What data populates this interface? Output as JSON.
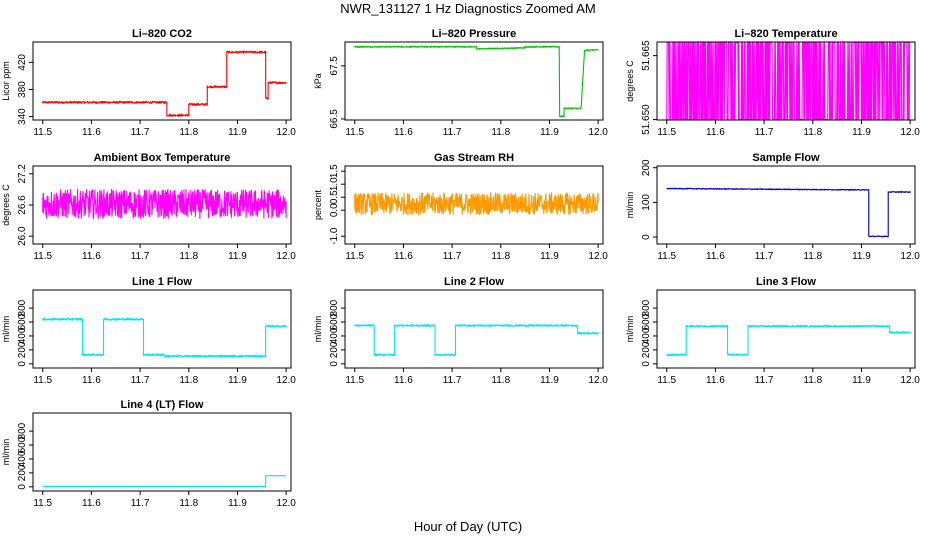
{
  "figure": {
    "title": "NWR_131127  1 Hz Diagnostics Zoomed AM",
    "xlabel": "Hour of Day (UTC)"
  },
  "chart_data": [
    {
      "type": "line",
      "title": "Li–820 CO2",
      "xlabel": "",
      "ylabel": "Licor ppm",
      "color": "#ff0000",
      "xlim": [
        11.48,
        12.01
      ],
      "ylim": [
        335,
        450
      ],
      "xticks": [
        "11.5",
        "11.6",
        "11.7",
        "11.8",
        "11.9",
        "12.0"
      ],
      "yticks": [
        "340",
        "380",
        "420"
      ],
      "series": [
        {
          "x": [
            11.5,
            11.755,
            11.755,
            11.8,
            11.8,
            11.838,
            11.838,
            11.878,
            11.878,
            11.958,
            11.958,
            11.963,
            11.963,
            12.0
          ],
          "y": [
            361,
            361,
            342,
            342,
            358,
            358,
            384,
            384,
            435,
            435,
            367,
            367,
            390,
            390
          ],
          "noise": 1.5
        }
      ]
    },
    {
      "type": "line",
      "title": "Li–820 Pressure",
      "xlabel": "",
      "ylabel": "kPa",
      "color": "#00c000",
      "xlim": [
        11.48,
        12.01
      ],
      "ylim": [
        66.48,
        67.95
      ],
      "xticks": [
        "11.5",
        "11.6",
        "11.7",
        "11.8",
        "11.9",
        "12.0"
      ],
      "yticks": [
        "66.5",
        "67.5"
      ],
      "series": [
        {
          "x": [
            11.5,
            11.75,
            11.75,
            11.85,
            11.85,
            11.92,
            11.921,
            11.93,
            11.93,
            11.965,
            11.972,
            11.98,
            12.0
          ],
          "y": [
            67.86,
            67.86,
            67.82,
            67.84,
            67.86,
            67.86,
            66.55,
            66.55,
            66.7,
            66.7,
            67.78,
            67.8,
            67.8
          ],
          "noise": 0.01
        }
      ]
    },
    {
      "type": "line",
      "title": "Li–820 Temperature",
      "xlabel": "",
      "ylabel": "degrees C",
      "color": "#ff00ff",
      "xlim": [
        11.48,
        12.01
      ],
      "ylim": [
        51.6499,
        51.6682
      ],
      "xticks": [
        "11.5",
        "11.6",
        "11.7",
        "11.8",
        "11.9",
        "12.0"
      ],
      "yticks": [
        "51.650",
        "51.665"
      ],
      "series": [
        {
          "x": [
            11.5,
            12.0
          ],
          "y": [
            51.65,
            51.668
          ],
          "pattern": "toggle"
        }
      ]
    },
    {
      "type": "line",
      "title": "Ambient Box Temperature",
      "xlabel": "",
      "ylabel": "degrees C",
      "color": "#ff00ff",
      "xlim": [
        11.48,
        12.01
      ],
      "ylim": [
        25.85,
        27.35
      ],
      "xticks": [
        "11.5",
        "11.6",
        "11.7",
        "11.8",
        "11.9",
        "12.0"
      ],
      "yticks": [
        "26.0",
        "26.6",
        "27.2"
      ],
      "series": [
        {
          "x": [
            11.5,
            12.0
          ],
          "y": [
            26.62,
            26.62
          ],
          "noise": 0.28
        }
      ]
    },
    {
      "type": "line",
      "title": "Gas Stream RH",
      "xlabel": "",
      "ylabel": "percent",
      "color": "#ff9900",
      "xlim": [
        11.48,
        12.01
      ],
      "ylim": [
        -1.3,
        1.7
      ],
      "xticks": [
        "11.5",
        "11.6",
        "11.7",
        "11.8",
        "11.9",
        "12.0"
      ],
      "yticks": [
        "-1.0",
        "0.0",
        "0.5",
        "1.0",
        "1.5"
      ],
      "series": [
        {
          "x": [
            11.5,
            12.0
          ],
          "y": [
            0.25,
            0.25
          ],
          "noise": 0.42
        }
      ]
    },
    {
      "type": "line",
      "title": "Sample Flow",
      "xlabel": "",
      "ylabel": "ml/min",
      "color": "#0000cc",
      "xlim": [
        11.48,
        12.01
      ],
      "ylim": [
        -20,
        205
      ],
      "xticks": [
        "11.5",
        "11.6",
        "11.7",
        "11.8",
        "11.9",
        "12.0"
      ],
      "yticks": [
        "0",
        "100",
        "200"
      ],
      "series": [
        {
          "x": [
            11.5,
            11.915,
            11.915,
            11.955,
            11.955,
            12.0
          ],
          "y": [
            140,
            136,
            2,
            2,
            130,
            130
          ],
          "noise": 1.2
        }
      ]
    },
    {
      "type": "line",
      "title": "Line 1 Flow",
      "xlabel": "",
      "ylabel": "ml/min",
      "color": "#00e5ee",
      "xlim": [
        11.48,
        12.01
      ],
      "ylim": [
        -60,
        1060
      ],
      "xticks": [
        "11.5",
        "11.6",
        "11.7",
        "11.8",
        "11.9",
        "12.0"
      ],
      "yticks": [
        "0",
        "200",
        "400",
        "600",
        "800"
      ],
      "series": [
        {
          "x": [
            11.5,
            11.582,
            11.582,
            11.625,
            11.625,
            11.707,
            11.707,
            11.75,
            11.75,
            11.958,
            11.958,
            12.0
          ],
          "y": [
            640,
            640,
            130,
            130,
            640,
            640,
            130,
            130,
            110,
            110,
            540,
            540
          ],
          "noise": 14
        }
      ]
    },
    {
      "type": "line",
      "title": "Line 2 Flow",
      "xlabel": "",
      "ylabel": "ml/min",
      "color": "#00e5ee",
      "xlim": [
        11.48,
        12.01
      ],
      "ylim": [
        -60,
        1060
      ],
      "xticks": [
        "11.5",
        "11.6",
        "11.7",
        "11.8",
        "11.9",
        "12.0"
      ],
      "yticks": [
        "0",
        "200",
        "400",
        "600",
        "800"
      ],
      "series": [
        {
          "x": [
            11.5,
            11.54,
            11.54,
            11.582,
            11.582,
            11.665,
            11.665,
            11.707,
            11.707,
            11.958,
            11.958,
            12.0
          ],
          "y": [
            550,
            550,
            130,
            130,
            550,
            550,
            130,
            130,
            550,
            550,
            440,
            440
          ],
          "noise": 12
        }
      ]
    },
    {
      "type": "line",
      "title": "Line 3 Flow",
      "xlabel": "",
      "ylabel": "ml/min",
      "color": "#00e5ee",
      "xlim": [
        11.48,
        12.01
      ],
      "ylim": [
        -60,
        1060
      ],
      "xticks": [
        "11.5",
        "11.6",
        "11.7",
        "11.8",
        "11.9",
        "12.0"
      ],
      "yticks": [
        "0",
        "200",
        "400",
        "600",
        "800"
      ],
      "series": [
        {
          "x": [
            11.5,
            11.54,
            11.54,
            11.625,
            11.625,
            11.667,
            11.667,
            11.958,
            11.958,
            12.0
          ],
          "y": [
            130,
            130,
            540,
            540,
            130,
            130,
            540,
            540,
            450,
            450
          ],
          "noise": 12
        }
      ]
    },
    {
      "type": "line",
      "title": "Line 4 (LT) Flow",
      "xlabel": "",
      "ylabel": "ml/min",
      "color": "#00e5ee",
      "xlim": [
        11.48,
        12.01
      ],
      "ylim": [
        -60,
        1060
      ],
      "xticks": [
        "11.5",
        "11.6",
        "11.7",
        "11.8",
        "11.9",
        "12.0"
      ],
      "yticks": [
        "0",
        "200",
        "400",
        "600",
        "800"
      ],
      "series": [
        {
          "x": [
            11.5,
            11.958,
            11.958,
            12.0
          ],
          "y": [
            5,
            5,
            160,
            160
          ],
          "noise": 0
        }
      ]
    }
  ]
}
